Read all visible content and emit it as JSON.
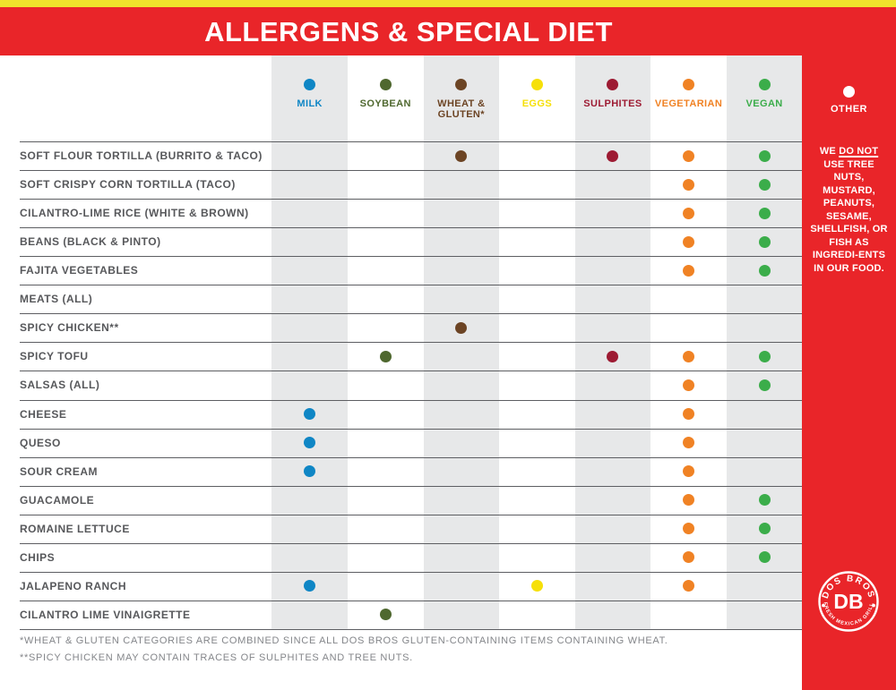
{
  "header": {
    "title": "ALLERGENS & SPECIAL DIET"
  },
  "columns": [
    {
      "id": "milk",
      "label": "MILK",
      "color": "#0F86C5"
    },
    {
      "id": "soybean",
      "label": "SOYBEAN",
      "color": "#4F682F"
    },
    {
      "id": "wheat_gluten",
      "label": "WHEAT & GLUTEN*",
      "color": "#6C4424"
    },
    {
      "id": "eggs",
      "label": "EGGS",
      "color": "#F6E009"
    },
    {
      "id": "sulphites",
      "label": "SULPHITES",
      "color": "#9D1B33"
    },
    {
      "id": "vegetarian",
      "label": "VEGETARIAN",
      "color": "#F08224"
    },
    {
      "id": "vegan",
      "label": "VEGAN",
      "color": "#3BAD4A"
    }
  ],
  "other": {
    "label": "OTHER",
    "color": "#FFFFFF",
    "note_prefix": "WE ",
    "note_underlined": "DO NOT",
    "note_rest": " USE TREE NUTS, MUSTARD, PEANUTS, SESAME, SHELLFISH, OR FISH AS INGREDI-ENTS IN OUR FOOD."
  },
  "rows": [
    {
      "label": "SOFT FLOUR TORTILLA (BURRITO & TACO)",
      "marks": [
        "wheat_gluten",
        "sulphites",
        "vegetarian",
        "vegan"
      ]
    },
    {
      "label": "SOFT CRISPY CORN TORTILLA (TACO)",
      "marks": [
        "vegetarian",
        "vegan"
      ]
    },
    {
      "label": "CILANTRO-LIME RICE (WHITE & BROWN)",
      "marks": [
        "vegetarian",
        "vegan"
      ]
    },
    {
      "label": "BEANS (BLACK & PINTO)",
      "marks": [
        "vegetarian",
        "vegan"
      ]
    },
    {
      "label": "FAJITA VEGETABLES",
      "marks": [
        "vegetarian",
        "vegan"
      ]
    },
    {
      "label": "MEATS (ALL)",
      "marks": []
    },
    {
      "label": "SPICY CHICKEN**",
      "marks": [
        "wheat_gluten"
      ]
    },
    {
      "label": "SPICY TOFU",
      "marks": [
        "soybean",
        "sulphites",
        "vegetarian",
        "vegan"
      ]
    },
    {
      "label": "SALSAS (ALL)",
      "marks": [
        "vegetarian",
        "vegan"
      ]
    },
    {
      "label": "CHEESE",
      "marks": [
        "milk",
        "vegetarian"
      ]
    },
    {
      "label": "QUESO",
      "marks": [
        "milk",
        "vegetarian"
      ]
    },
    {
      "label": "SOUR CREAM",
      "marks": [
        "milk",
        "vegetarian"
      ]
    },
    {
      "label": "GUACAMOLE",
      "marks": [
        "vegetarian",
        "vegan"
      ]
    },
    {
      "label": "ROMAINE LETTUCE",
      "marks": [
        "vegetarian",
        "vegan"
      ]
    },
    {
      "label": "CHIPS",
      "marks": [
        "vegetarian",
        "vegan"
      ]
    },
    {
      "label": "JALAPENO RANCH",
      "marks": [
        "milk",
        "eggs",
        "vegetarian"
      ]
    },
    {
      "label": "CILANTRO LIME VINAIGRETTE",
      "marks": [
        "soybean"
      ]
    }
  ],
  "footnotes": [
    "*WHEAT & GLUTEN CATEGORIES ARE COMBINED SINCE ALL DOS BROS GLUTEN-CONTAINING ITEMS CONTAINING WHEAT.",
    "**SPICY CHICKEN MAY CONTAIN TRACES OF SULPHITES AND TREE NUTS."
  ],
  "logo": {
    "top_text": "DOS BROS",
    "monogram": "DB",
    "bottom_text": "FRESH MEXICAN GRILL"
  },
  "colors": {
    "brand_red": "#E92529",
    "accent_yellow": "#F0E22C",
    "stripe_gray": "#E7E8E9",
    "label_gray": "#57585B",
    "divider_gray": "#5D5E62",
    "footnote_gray": "#84868A"
  }
}
